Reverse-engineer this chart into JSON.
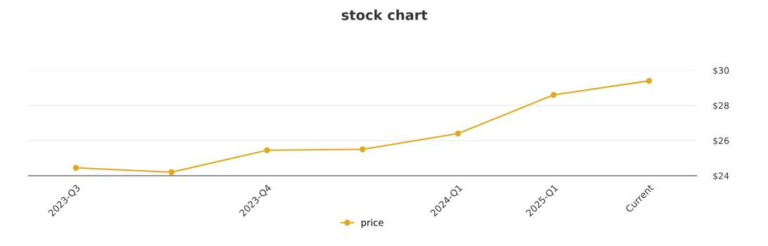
{
  "chart_data": {
    "type": "line",
    "title": "stock chart",
    "categories": [
      "2023-Q3",
      null,
      "2023-Q4",
      null,
      "2024-Q1",
      "2025-Q1",
      "Current"
    ],
    "series": [
      {
        "name": "price",
        "color": "#e0a91b",
        "values": [
          24.45,
          24.2,
          25.45,
          25.5,
          26.4,
          28.6,
          29.4
        ]
      }
    ],
    "ylim": [
      24,
      30
    ],
    "yticks": [
      {
        "value": 24,
        "label": "$24"
      },
      {
        "value": 26,
        "label": "$26"
      },
      {
        "value": 28,
        "label": "$28"
      },
      {
        "value": 30,
        "label": "$30"
      }
    ],
    "grid": "y",
    "legend": "bottom",
    "marker": "circle",
    "line_style": "solid"
  }
}
